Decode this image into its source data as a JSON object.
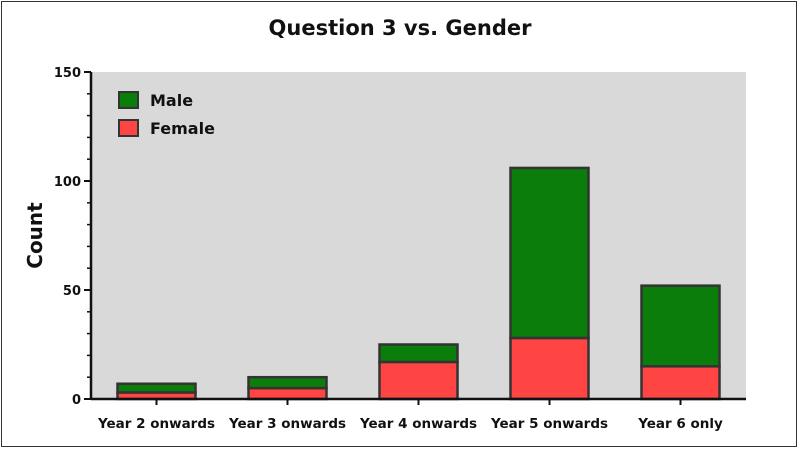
{
  "chart_data": {
    "type": "bar",
    "stacked": true,
    "title": "Question 3 vs. Gender",
    "xlabel": "",
    "ylabel": "Count",
    "ylim": [
      0,
      150
    ],
    "yticks": [
      0,
      50,
      100,
      150
    ],
    "categories": [
      "Year 2 onwards",
      "Year 3 onwards",
      "Year 4 onwards",
      "Year 5 onwards",
      "Year 6 only"
    ],
    "series": [
      {
        "name": "Female",
        "color": "#ff4444",
        "values": [
          3,
          5,
          17,
          28,
          15
        ]
      },
      {
        "name": "Male",
        "color": "#0a7d0a",
        "values": [
          4,
          5,
          8,
          78,
          37
        ]
      }
    ],
    "legend": {
      "placement": "top-left",
      "order": [
        "Male",
        "Female"
      ]
    },
    "grid": false,
    "plot_background": "#d9d9d9"
  }
}
